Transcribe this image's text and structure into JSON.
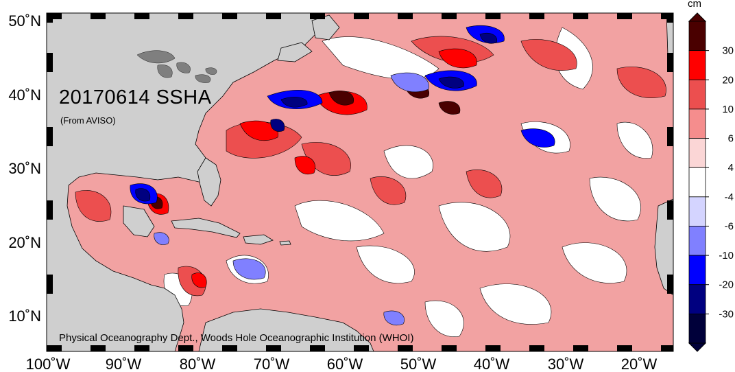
{
  "map": {
    "title": "20170614 SSHA",
    "subtitle": "(From AVISO)",
    "credit": "Physical Oceanography Dept., Woods Hole Oceanographic Institution (WHOI)"
  },
  "axes": {
    "lat_labels": [
      "50˚N",
      "40˚N",
      "30˚N",
      "20˚N",
      "10˚N"
    ],
    "lon_labels": [
      "100˚W",
      "90˚W",
      "80˚W",
      "70˚W",
      "60˚W",
      "50˚W",
      "40˚W",
      "30˚W",
      "20˚W"
    ],
    "lat_range": [
      5,
      51
    ],
    "lon_range": [
      -100,
      -15
    ]
  },
  "colorbar": {
    "unit": "cm",
    "levels": [
      "30",
      "20",
      "10",
      "6",
      "4",
      "-4",
      "-6",
      "-10",
      "-20",
      "-30"
    ],
    "colors": [
      "#4a0000",
      "#ff0000",
      "#ec4f4f",
      "#f58d8d",
      "#fbd6d6",
      "#ffffff",
      "#d4d4ff",
      "#8080ff",
      "#0000ff",
      "#000080",
      "#00003a"
    ]
  },
  "colors": {
    "land": "#cfcfcf",
    "ocean_base": "#f2a2a2"
  }
}
